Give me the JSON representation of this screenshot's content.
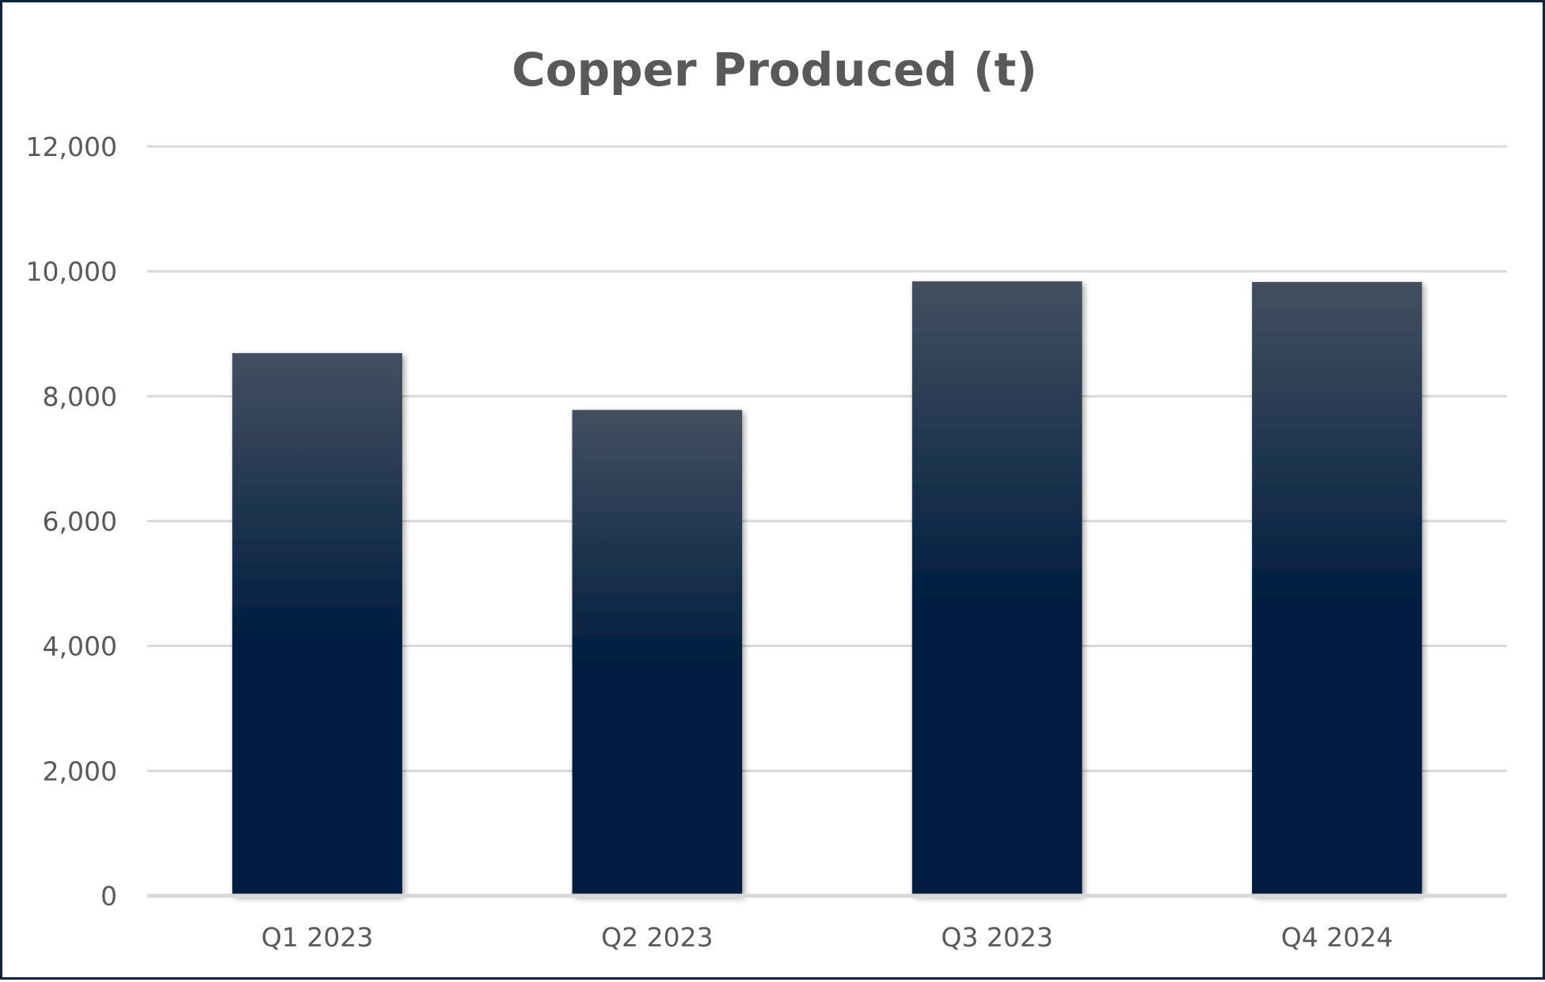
{
  "chart_data": {
    "type": "bar",
    "title": "Copper Produced (t)",
    "xlabel": "",
    "ylabel": "",
    "categories": [
      "Q1 2023",
      "Q2 2023",
      "Q3 2023",
      "Q4 2024"
    ],
    "values": [
      8690,
      7780,
      9840,
      9830
    ],
    "ylim": [
      0,
      12000
    ],
    "yticks": [
      0,
      2000,
      4000,
      6000,
      8000,
      10000,
      12000
    ],
    "ytick_labels": [
      "0",
      "2,000",
      "4,000",
      "6,000",
      "8,000",
      "10,000",
      "12,000"
    ],
    "grid": true,
    "legend": "none",
    "colors": {
      "bar_top": "#444f60",
      "bar_bottom": "#001f40",
      "gridline": "#d9d9d9",
      "axis_line": "#d9d9d9",
      "text": "#595959",
      "border": "#0b2340"
    }
  }
}
